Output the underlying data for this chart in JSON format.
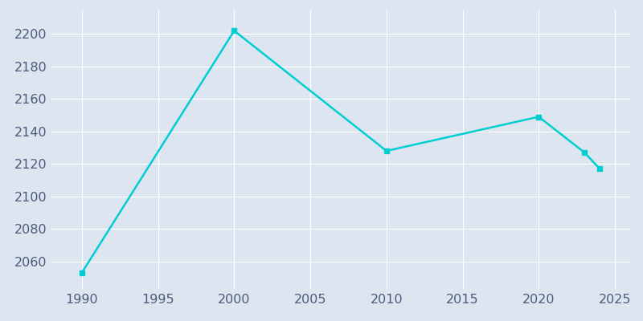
{
  "years": [
    1990,
    2000,
    2010,
    2020,
    2023,
    2024
  ],
  "population": [
    2053,
    2202,
    2128,
    2149,
    2127,
    2117
  ],
  "line_color": "#00CED1",
  "marker": "s",
  "marker_size": 4,
  "plot_bg_color": "#DDE6F0",
  "fig_bg_color": "#DDE6F0",
  "grid_color": "#FFFFFF",
  "xlim": [
    1988,
    2026
  ],
  "ylim": [
    2043,
    2215
  ],
  "xticks": [
    1990,
    1995,
    2000,
    2005,
    2010,
    2015,
    2020,
    2025
  ],
  "yticks": [
    2060,
    2080,
    2100,
    2120,
    2140,
    2160,
    2180,
    2200
  ],
  "tick_color": "#4B5A7A",
  "tick_fontsize": 11.5,
  "linewidth": 1.8
}
